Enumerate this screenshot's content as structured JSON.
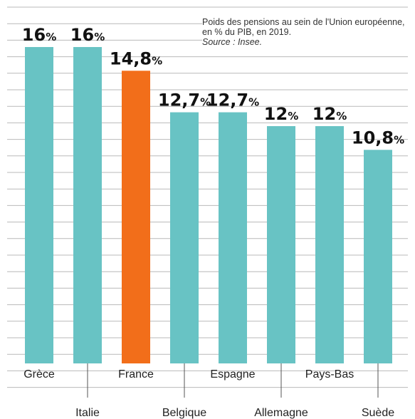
{
  "chart_data": {
    "type": "bar",
    "title": "Poids des pensions au sein de l'Union européenne, en % du PIB, en 2019.",
    "source": "Source : Insee.",
    "categories": [
      "Grèce",
      "Italie",
      "France",
      "Belgique",
      "Espagne",
      "Allemagne",
      "Pays-Bas",
      "Suède"
    ],
    "values": [
      16,
      16,
      14.8,
      12.7,
      12.7,
      12,
      12,
      10.8
    ],
    "value_labels": [
      "16",
      "16",
      "14,8",
      "12,7",
      "12,7",
      "12",
      "12",
      "10,8"
    ],
    "unit": "%",
    "ylim": [
      0,
      16.2
    ],
    "grid": true,
    "xlabel": "",
    "ylabel": ""
  },
  "colors": {
    "bar": "#68c3c4",
    "highlight": "#f26e1a",
    "highlight_category": "France",
    "grid": "#b9b9b9",
    "text": "#111111"
  }
}
